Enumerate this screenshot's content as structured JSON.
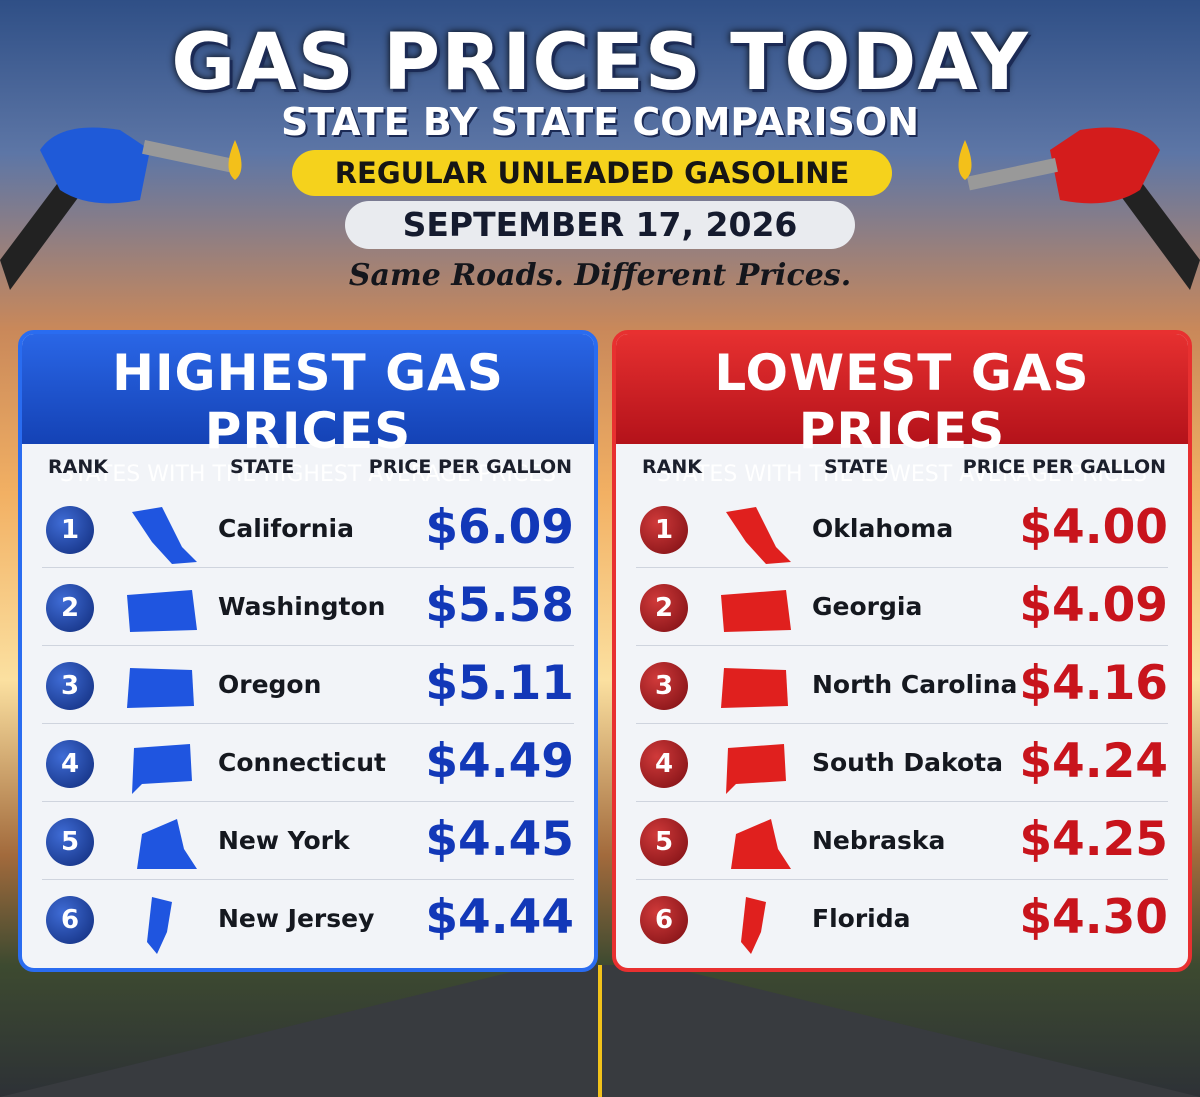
{
  "header": {
    "title": "GAS PRICES TODAY",
    "subtitle": "STATE BY STATE COMPARISON",
    "badge": "REGULAR UNLEADED GASOLINE",
    "date": "SEPTEMBER 17, 2026",
    "tagline": "Same Roads. Different Prices."
  },
  "panels": [
    {
      "title": "HIGHEST GAS PRICES",
      "subtitle": "STATES WITH THE HIGHEST AVERAGE PRICES",
      "columns": [
        "RANK",
        "STATE",
        "PRICE PER GALLON"
      ],
      "rows": [
        [
          "1",
          "California",
          "$6.09"
        ],
        [
          "2",
          "Washington",
          "$5.58"
        ],
        [
          "3",
          "Oregon",
          "$5.11"
        ],
        [
          "4",
          "Connecticut",
          "$4.49"
        ],
        [
          "5",
          "New York",
          "$4.45"
        ],
        [
          "6",
          "New Jersey",
          "$4.44"
        ]
      ]
    },
    {
      "title": "LOWEST GAS PRICES",
      "subtitle": "STATES WITH THE LOWEST AVERAGE PRICES",
      "columns": [
        "RANK",
        "STATE",
        "PRICE PER GALLON"
      ],
      "rows": [
        [
          "1",
          "Oklahoma",
          "$4.00"
        ],
        [
          "2",
          "Georgia",
          "$4.09"
        ],
        [
          "3",
          "North Carolina",
          "$4.16"
        ],
        [
          "4",
          "South Dakota",
          "$4.24"
        ],
        [
          "5",
          "Nebraska",
          "$4.25"
        ],
        [
          "6",
          "Florida",
          "$4.30"
        ]
      ]
    }
  ]
}
